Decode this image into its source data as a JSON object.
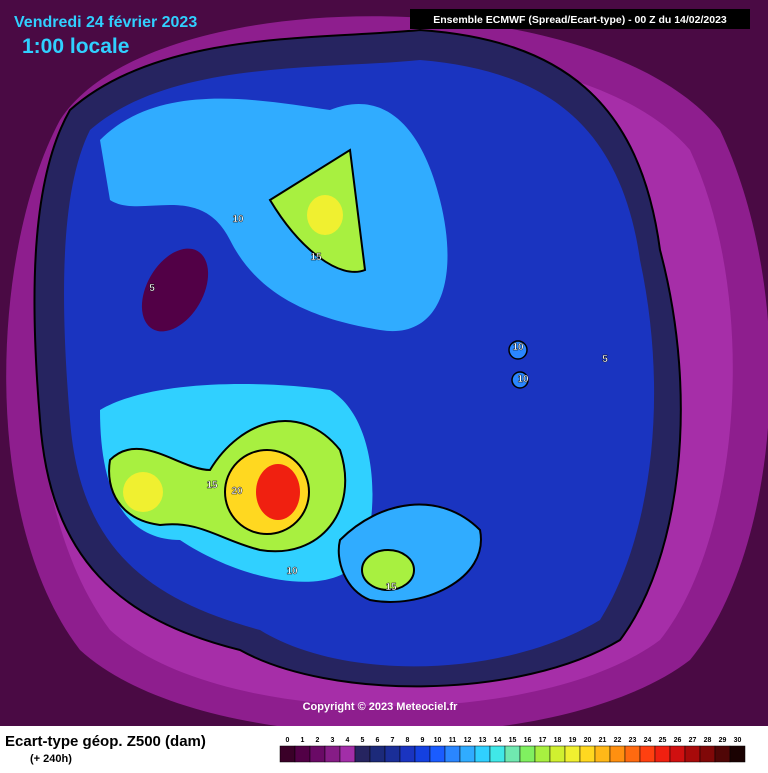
{
  "header": {
    "date": "Vendredi 24 février 2023",
    "time": "1:00 locale",
    "model": "Ensemble ECMWF  (Spread/Ecart-type) - 00 Z du 14/02/2023"
  },
  "map": {
    "contour_labels": [
      "10",
      "15",
      "5",
      "10",
      "10",
      "5",
      "15",
      "20",
      "10",
      "15"
    ],
    "copyright": "Copyright © 2023 Meteociel.fr"
  },
  "legend": {
    "title": "Ecart-type géop. Z500 (dam)",
    "subtitle": "(+ 240h)",
    "ticks": [
      0,
      1,
      2,
      3,
      4,
      5,
      6,
      7,
      8,
      9,
      10,
      11,
      12,
      13,
      14,
      15,
      16,
      17,
      18,
      19,
      20,
      21,
      22,
      23,
      24,
      25,
      26,
      27,
      28,
      29,
      30
    ],
    "colors": [
      "#3a0028",
      "#520046",
      "#6a0a66",
      "#861c86",
      "#a22ea8",
      "#262460",
      "#1c2a7a",
      "#1a2e98",
      "#1a34c0",
      "#1440e0",
      "#1a5cff",
      "#2a86ff",
      "#30acff",
      "#30d0ff",
      "#40e8e8",
      "#70e8b0",
      "#80f060",
      "#a8f040",
      "#d0f030",
      "#f0f030",
      "#ffd820",
      "#ffb818",
      "#ff9010",
      "#ff6a10",
      "#ff4010",
      "#f02010",
      "#d01010",
      "#a80a0a",
      "#800808",
      "#500606",
      "#1a0202"
    ]
  }
}
